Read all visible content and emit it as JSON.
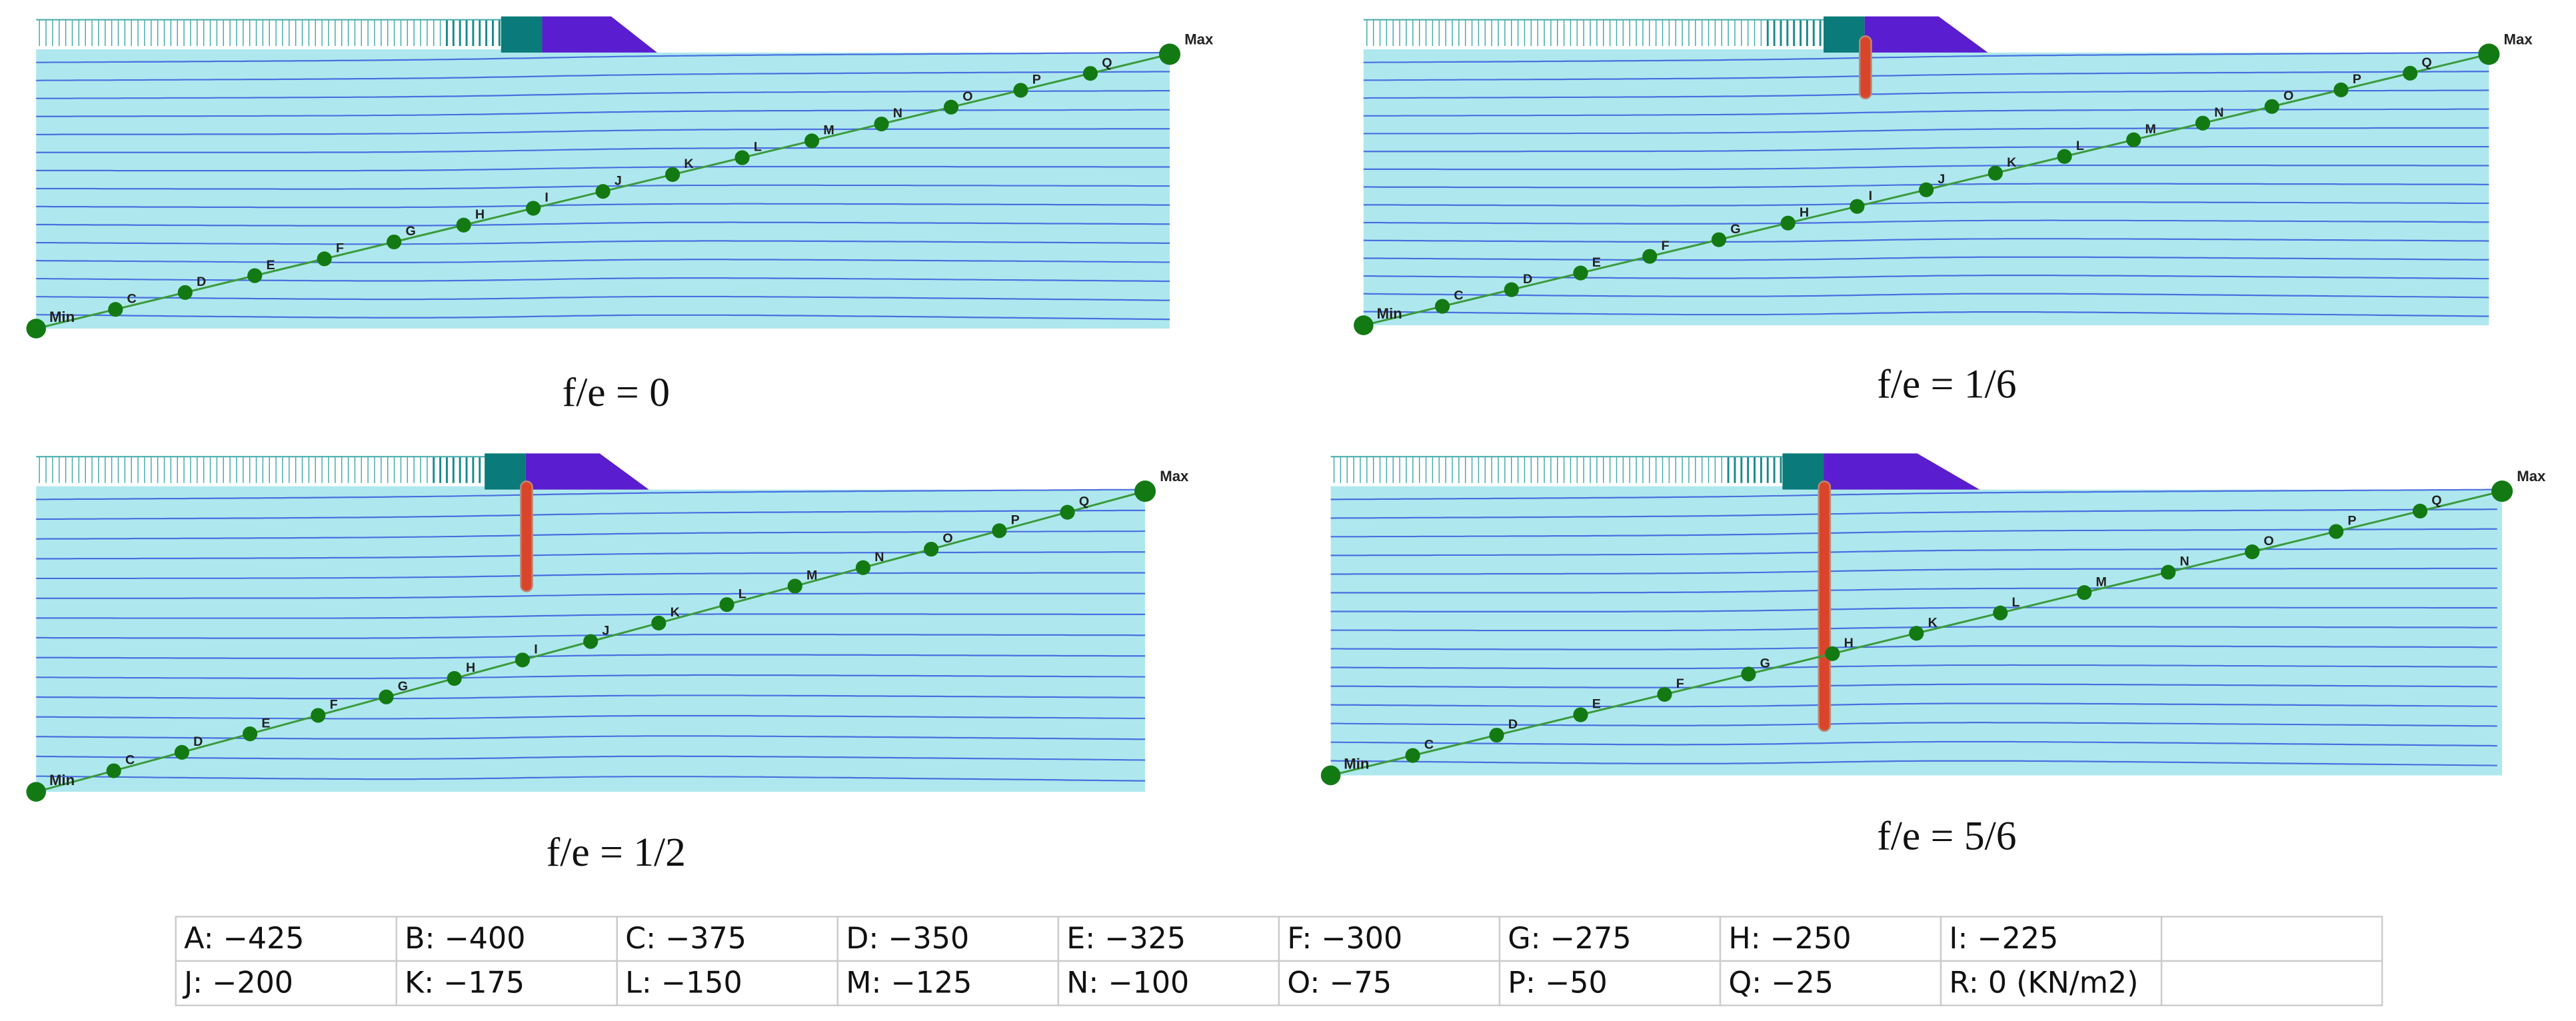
{
  "panels": [
    {
      "caption": "f/e = 0",
      "min_label": "Min",
      "max_label": "Max",
      "point_labels": [
        "C",
        "D",
        "E",
        "F",
        "G",
        "H",
        "I",
        "J",
        "K",
        "L",
        "M",
        "N",
        "O",
        "P",
        "Q"
      ]
    },
    {
      "caption": "f/e = 1/6",
      "min_label": "Min",
      "max_label": "Max",
      "point_labels": [
        "C",
        "D",
        "E",
        "F",
        "G",
        "H",
        "I",
        "J",
        "K",
        "L",
        "M",
        "N",
        "O",
        "P",
        "Q"
      ]
    },
    {
      "caption": "f/e = 1/2",
      "min_label": "Min",
      "max_label": "Max",
      "point_labels": [
        "C",
        "D",
        "E",
        "F",
        "G",
        "H",
        "I",
        "J",
        "K",
        "L",
        "M",
        "N",
        "O",
        "P",
        "Q"
      ]
    },
    {
      "caption": "f/e = 5/6",
      "min_label": "Min",
      "max_label": "Max",
      "point_labels": [
        "C",
        "D",
        "E",
        "F",
        "G",
        "H",
        "K",
        "L",
        "M",
        "N",
        "O",
        "P",
        "Q"
      ]
    }
  ],
  "legend_table": {
    "rows": [
      [
        "A: −425",
        "B: −400",
        "C: −375",
        "D: −350",
        "E: −325",
        "F: −300",
        "G: −275",
        "H: −250",
        "I: −225"
      ],
      [
        "J: −200",
        "K: −175",
        "L: −150",
        "M: −125",
        "N: −100",
        "O: −75",
        "P: −50",
        "Q: −25",
        "R: 0 (KN/m2)"
      ]
    ]
  }
}
